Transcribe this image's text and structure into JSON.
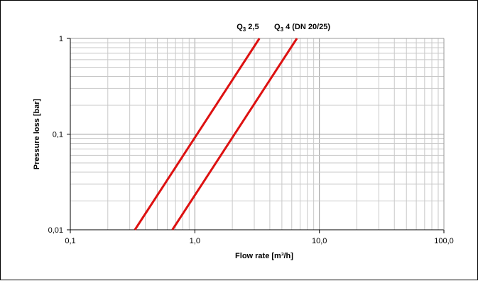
{
  "chart_data": {
    "type": "line",
    "xscale": "log",
    "yscale": "log",
    "xlim": [
      0.1,
      100
    ],
    "ylim": [
      0.01,
      1
    ],
    "grid": true,
    "xlabel": "Flow rate [m³/h]",
    "ylabel": "Pressure loss [bar]",
    "xticks": [
      "0,1",
      "1,0",
      "10,0",
      "100,0"
    ],
    "yticks": [
      "0,01",
      "0,1",
      "1"
    ],
    "line_color": "#dd1111",
    "series": [
      {
        "label_main": "Q",
        "label_sub": "3",
        "label_rest": " 2,5",
        "x": [
          0.33,
          3.3
        ],
        "y": [
          0.01,
          1
        ]
      },
      {
        "label_main": "Q",
        "label_sub": "3",
        "label_rest": " 4 (DN 20/25)",
        "x": [
          0.66,
          6.6
        ],
        "y": [
          0.01,
          1
        ]
      }
    ]
  }
}
